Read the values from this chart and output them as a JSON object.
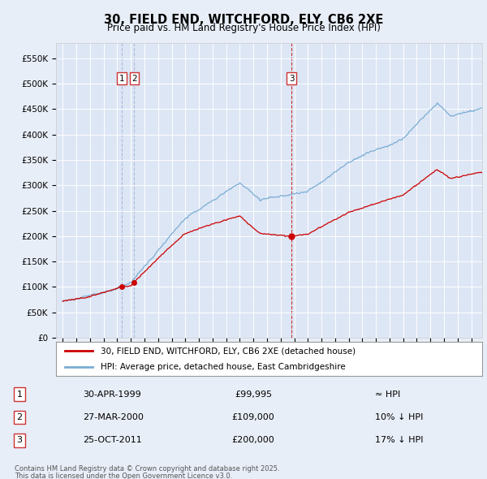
{
  "title": "30, FIELD END, WITCHFORD, ELY, CB6 2XE",
  "subtitle": "Price paid vs. HM Land Registry's House Price Index (HPI)",
  "legend_line1": "30, FIELD END, WITCHFORD, ELY, CB6 2XE (detached house)",
  "legend_line2": "HPI: Average price, detached house, East Cambridgeshire",
  "transactions": [
    {
      "label": "1",
      "date": "30-APR-1999",
      "price": 99995,
      "price_str": "£99,995",
      "note": "≈ HPI",
      "x": 1999.33
    },
    {
      "label": "2",
      "date": "27-MAR-2000",
      "price": 109000,
      "price_str": "£109,000",
      "note": "10% ↓ HPI",
      "x": 2000.25
    },
    {
      "label": "3",
      "date": "25-OCT-2011",
      "price": 200000,
      "price_str": "£200,000",
      "note": "17% ↓ HPI",
      "x": 2011.81
    }
  ],
  "footer_line1": "Contains HM Land Registry data © Crown copyright and database right 2025.",
  "footer_line2": "This data is licensed under the Open Government Licence v3.0.",
  "ylim": [
    0,
    580000
  ],
  "yticks": [
    0,
    50000,
    100000,
    150000,
    200000,
    250000,
    300000,
    350000,
    400000,
    450000,
    500000,
    550000
  ],
  "background_color": "#e8eef8",
  "plot_bg_color": "#dde6f5",
  "line_color_red": "#cc0000",
  "line_color_blue": "#7aadd4",
  "vline_color_red": "#cc3333",
  "vline_color_blue": "#aabbdd",
  "xlim_start": 1994.5,
  "xlim_end": 2025.8
}
